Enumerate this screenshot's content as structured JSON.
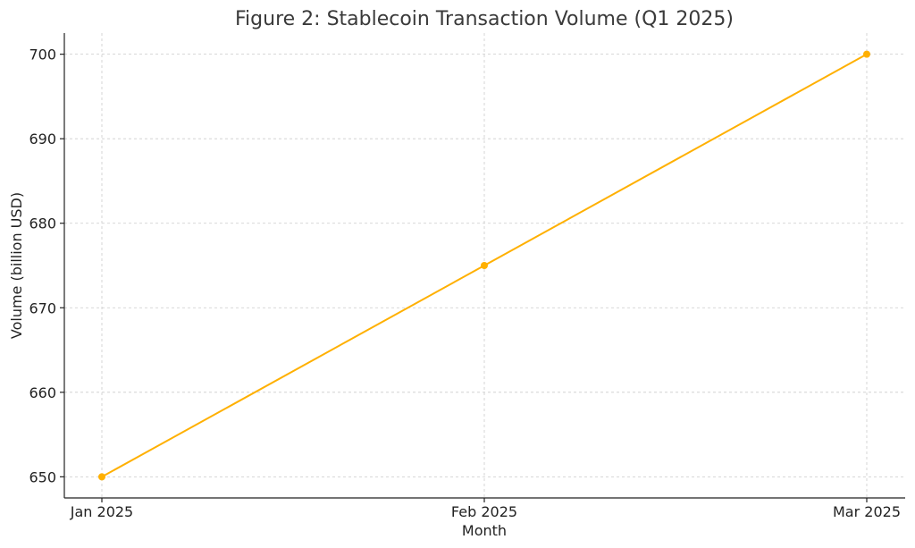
{
  "chart_data": {
    "type": "line",
    "title": "Figure 2: Stablecoin Transaction Volume (Q1 2025)",
    "xlabel": "Month",
    "ylabel": "Volume (billion USD)",
    "categories": [
      "Jan 2025",
      "Feb 2025",
      "Mar 2025"
    ],
    "series": [
      {
        "values": [
          650,
          675,
          700
        ],
        "color": "#FFB000",
        "marker": "circle"
      }
    ],
    "ylim": [
      647.5,
      702.5
    ],
    "yticks": [
      650,
      660,
      670,
      680,
      690,
      700
    ],
    "grid": true,
    "legend": "none"
  }
}
